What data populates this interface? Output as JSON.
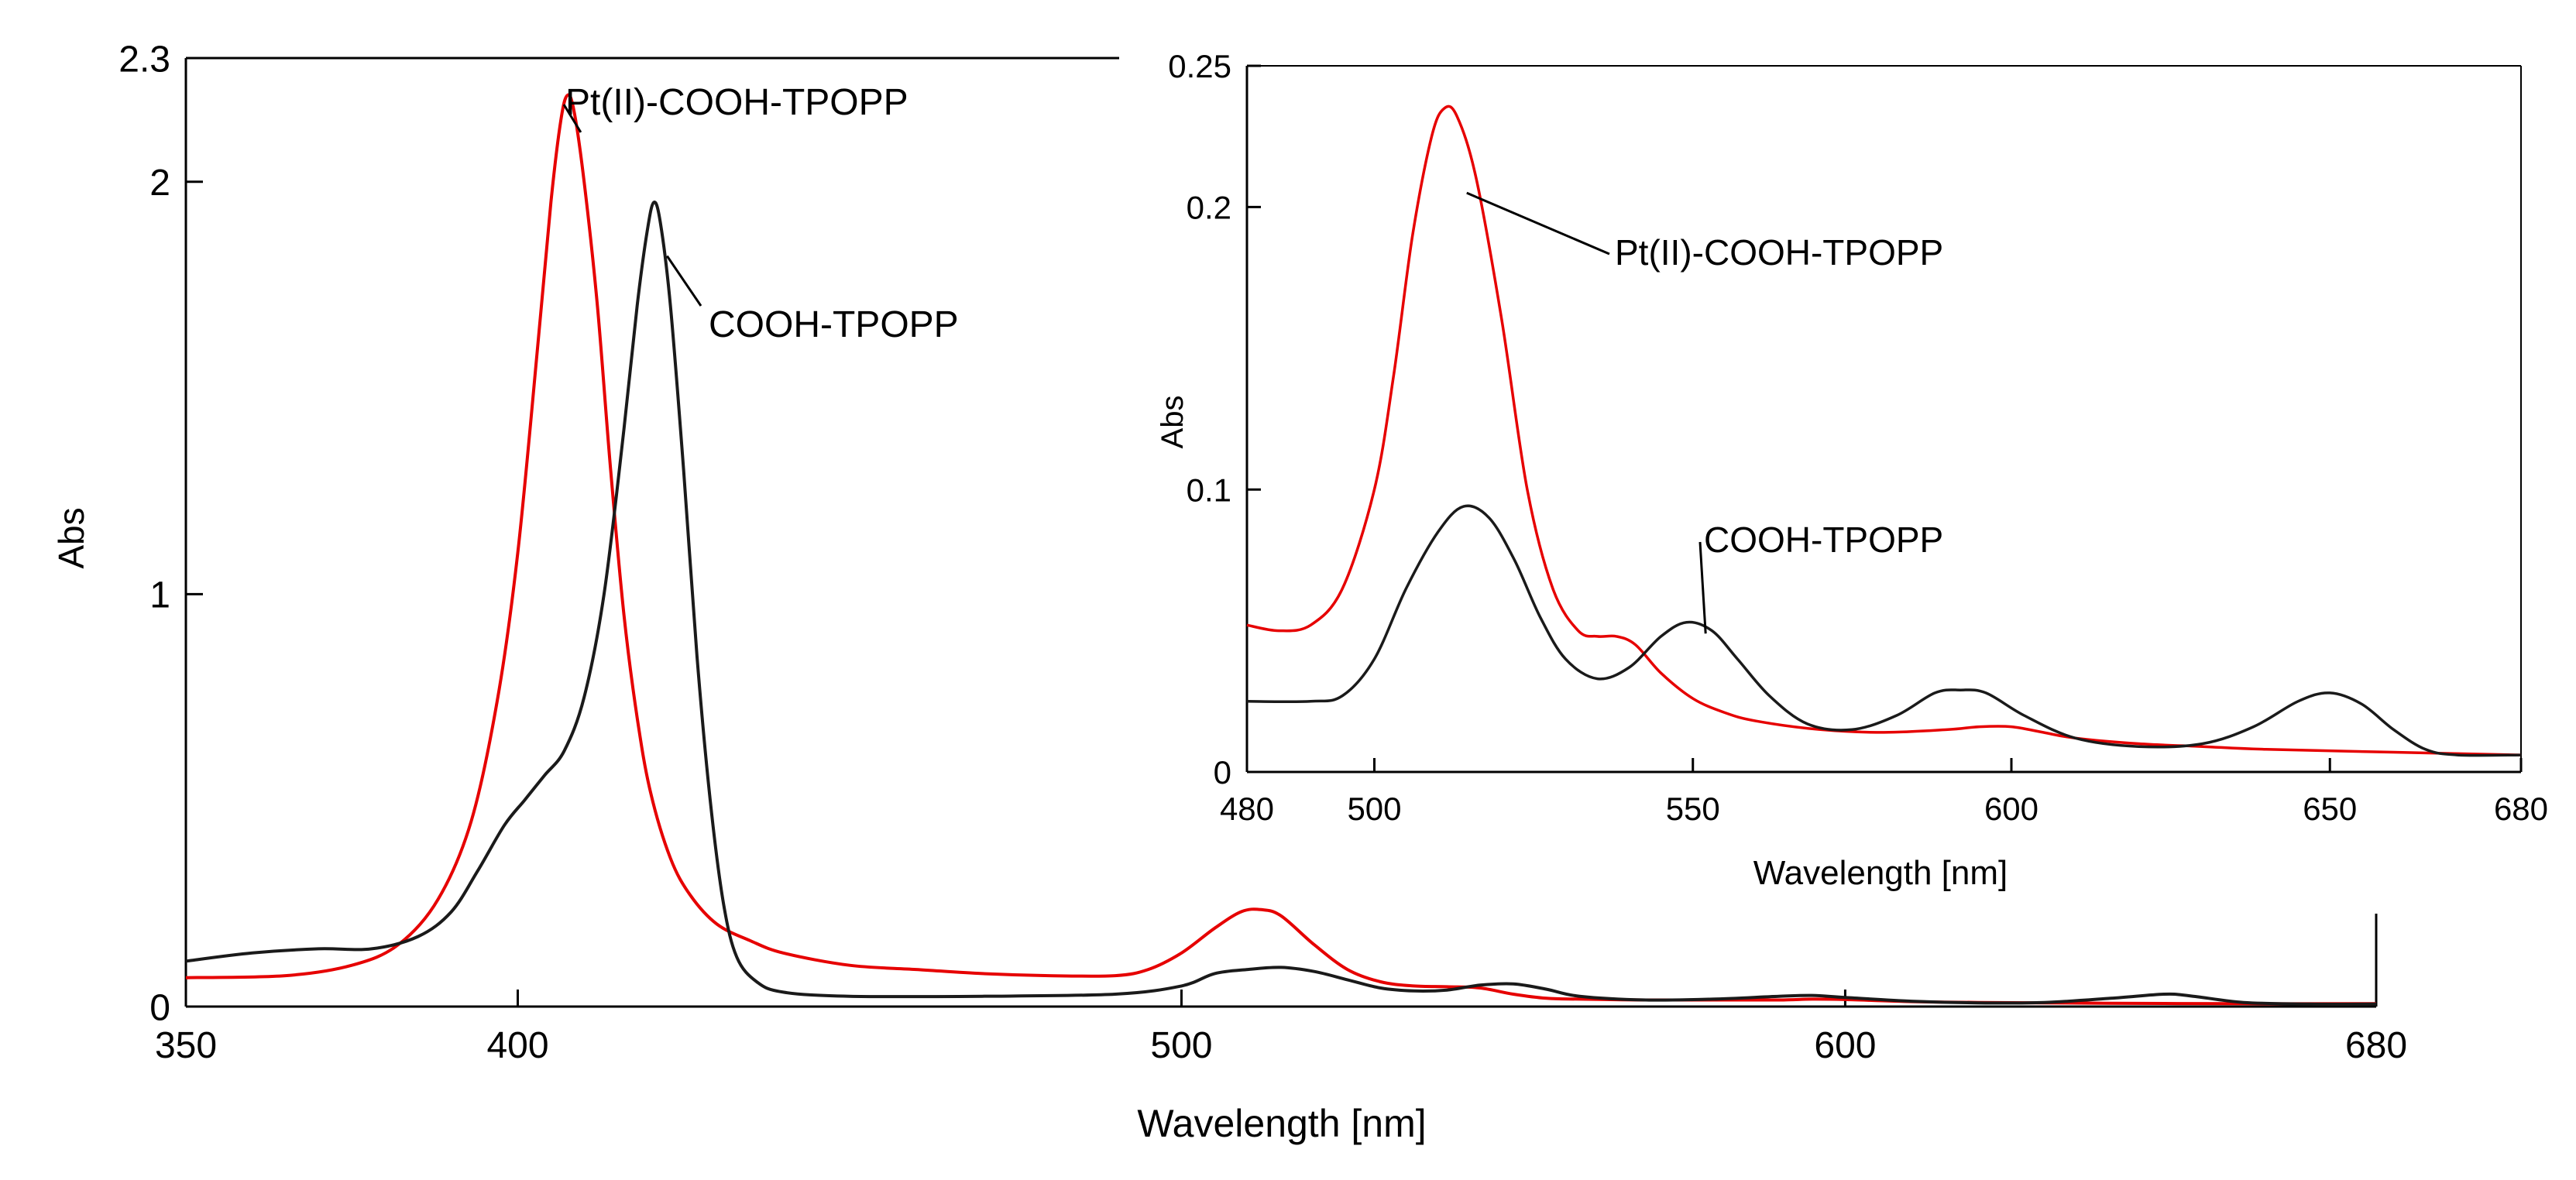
{
  "chart_data": [
    {
      "id": "main",
      "type": "line",
      "xlabel": "Wavelength [nm]",
      "ylabel": "Abs",
      "xlim": [
        350,
        680
      ],
      "ylim": [
        0,
        2.3
      ],
      "x_ticks": [
        350,
        400,
        500,
        600,
        680
      ],
      "y_ticks": [
        0,
        1,
        2,
        2.3
      ],
      "x_tick_labels": [
        "350",
        "400",
        "500",
        "600",
        "680"
      ],
      "y_tick_labels": [
        "0",
        "1",
        "2",
        "2.3"
      ],
      "series": [
        {
          "name": "Pt(II)-COOH-TPOPP",
          "color": "#e60000",
          "points": [
            [
              350,
              0.07
            ],
            [
              365,
              0.075
            ],
            [
              375,
              0.1
            ],
            [
              382,
              0.15
            ],
            [
              388,
              0.26
            ],
            [
              393,
              0.45
            ],
            [
              397,
              0.75
            ],
            [
              400,
              1.1
            ],
            [
              403,
              1.6
            ],
            [
              405,
              1.95
            ],
            [
              406.5,
              2.15
            ],
            [
              407.5,
              2.21
            ],
            [
              408.5,
              2.17
            ],
            [
              410,
              2.0
            ],
            [
              412,
              1.7
            ],
            [
              414,
              1.3
            ],
            [
              416,
              0.95
            ],
            [
              418,
              0.7
            ],
            [
              420,
              0.52
            ],
            [
              423,
              0.36
            ],
            [
              426,
              0.27
            ],
            [
              430,
              0.2
            ],
            [
              435,
              0.16
            ],
            [
              440,
              0.13
            ],
            [
              450,
              0.1
            ],
            [
              460,
              0.09
            ],
            [
              470,
              0.08
            ],
            [
              480,
              0.075
            ],
            [
              490,
              0.075
            ],
            [
              495,
              0.09
            ],
            [
              500,
              0.13
            ],
            [
              505,
              0.19
            ],
            [
              509,
              0.23
            ],
            [
              512,
              0.235
            ],
            [
              515,
              0.22
            ],
            [
              520,
              0.15
            ],
            [
              525,
              0.09
            ],
            [
              530,
              0.06
            ],
            [
              535,
              0.05
            ],
            [
              540,
              0.048
            ],
            [
              545,
              0.045
            ],
            [
              550,
              0.03
            ],
            [
              555,
              0.02
            ],
            [
              560,
              0.018
            ],
            [
              570,
              0.016
            ],
            [
              580,
              0.016
            ],
            [
              590,
              0.016
            ],
            [
              595,
              0.018
            ],
            [
              600,
              0.017
            ],
            [
              610,
              0.012
            ],
            [
              620,
              0.01
            ],
            [
              640,
              0.008
            ],
            [
              660,
              0.007
            ],
            [
              680,
              0.007
            ]
          ]
        },
        {
          "name": "COOH-TPOPP",
          "color": "#1a1a1a",
          "points": [
            [
              350,
              0.11
            ],
            [
              360,
              0.13
            ],
            [
              370,
              0.14
            ],
            [
              378,
              0.14
            ],
            [
              385,
              0.17
            ],
            [
              390,
              0.23
            ],
            [
              394,
              0.33
            ],
            [
              398,
              0.44
            ],
            [
              401,
              0.5
            ],
            [
              404,
              0.56
            ],
            [
              407,
              0.62
            ],
            [
              410,
              0.75
            ],
            [
              413,
              1.0
            ],
            [
              416,
              1.4
            ],
            [
              418,
              1.7
            ],
            [
              419.5,
              1.88
            ],
            [
              420.5,
              1.95
            ],
            [
              421.5,
              1.9
            ],
            [
              423,
              1.7
            ],
            [
              425,
              1.3
            ],
            [
              427,
              0.85
            ],
            [
              429,
              0.5
            ],
            [
              431,
              0.25
            ],
            [
              433,
              0.12
            ],
            [
              436,
              0.06
            ],
            [
              440,
              0.035
            ],
            [
              450,
              0.025
            ],
            [
              470,
              0.025
            ],
            [
              490,
              0.03
            ],
            [
              500,
              0.05
            ],
            [
              505,
              0.08
            ],
            [
              510,
              0.09
            ],
            [
              515,
              0.095
            ],
            [
              520,
              0.085
            ],
            [
              525,
              0.065
            ],
            [
              530,
              0.045
            ],
            [
              535,
              0.038
            ],
            [
              540,
              0.04
            ],
            [
              545,
              0.052
            ],
            [
              550,
              0.055
            ],
            [
              555,
              0.042
            ],
            [
              560,
              0.025
            ],
            [
              570,
              0.016
            ],
            [
              580,
              0.018
            ],
            [
              590,
              0.025
            ],
            [
              595,
              0.027
            ],
            [
              600,
              0.022
            ],
            [
              610,
              0.013
            ],
            [
              620,
              0.009
            ],
            [
              630,
              0.01
            ],
            [
              640,
              0.02
            ],
            [
              648,
              0.03
            ],
            [
              652,
              0.026
            ],
            [
              660,
              0.01
            ],
            [
              670,
              0.006
            ],
            [
              680,
              0.006
            ]
          ]
        }
      ],
      "annotations": [
        {
          "text": "Pt(II)-COOH-TPOPP",
          "series": 0
        },
        {
          "text": "COOH-TPOPP",
          "series": 1
        }
      ]
    },
    {
      "id": "inset",
      "type": "line",
      "xlabel": "Wavelength [nm]",
      "ylabel": "Abs",
      "xlim": [
        480,
        680
      ],
      "ylim": [
        0,
        0.25
      ],
      "x_ticks": [
        480,
        500,
        550,
        600,
        650,
        680
      ],
      "y_ticks": [
        0,
        0.1,
        0.2,
        0.25
      ],
      "x_tick_labels": [
        "480",
        "500",
        "550",
        "600",
        "650",
        "680"
      ],
      "y_tick_labels": [
        "0",
        "0.1",
        "0.2",
        "0.25"
      ],
      "series": [
        {
          "name": "Pt(II)-COOH-TPOPP",
          "color": "#e60000",
          "points": [
            [
              480,
              0.052
            ],
            [
              485,
              0.05
            ],
            [
              490,
              0.052
            ],
            [
              495,
              0.065
            ],
            [
              500,
              0.1
            ],
            [
              503,
              0.14
            ],
            [
              506,
              0.19
            ],
            [
              509,
              0.225
            ],
            [
              511,
              0.235
            ],
            [
              513,
              0.232
            ],
            [
              516,
              0.21
            ],
            [
              520,
              0.16
            ],
            [
              524,
              0.1
            ],
            [
              528,
              0.065
            ],
            [
              532,
              0.05
            ],
            [
              535,
              0.048
            ],
            [
              538,
              0.048
            ],
            [
              541,
              0.045
            ],
            [
              545,
              0.035
            ],
            [
              550,
              0.026
            ],
            [
              555,
              0.021
            ],
            [
              560,
              0.018
            ],
            [
              570,
              0.015
            ],
            [
              580,
              0.014
            ],
            [
              590,
              0.015
            ],
            [
              595,
              0.016
            ],
            [
              600,
              0.016
            ],
            [
              605,
              0.014
            ],
            [
              610,
              0.012
            ],
            [
              620,
              0.01
            ],
            [
              630,
              0.009
            ],
            [
              640,
              0.008
            ],
            [
              660,
              0.007
            ],
            [
              680,
              0.006
            ]
          ]
        },
        {
          "name": "COOH-TPOPP",
          "color": "#1a1a1a",
          "points": [
            [
              480,
              0.025
            ],
            [
              490,
              0.025
            ],
            [
              495,
              0.027
            ],
            [
              500,
              0.04
            ],
            [
              505,
              0.065
            ],
            [
              510,
              0.085
            ],
            [
              514,
              0.094
            ],
            [
              518,
              0.09
            ],
            [
              522,
              0.075
            ],
            [
              526,
              0.055
            ],
            [
              530,
              0.04
            ],
            [
              535,
              0.033
            ],
            [
              540,
              0.037
            ],
            [
              545,
              0.048
            ],
            [
              549,
              0.053
            ],
            [
              553,
              0.05
            ],
            [
              557,
              0.04
            ],
            [
              562,
              0.027
            ],
            [
              568,
              0.017
            ],
            [
              575,
              0.015
            ],
            [
              582,
              0.02
            ],
            [
              588,
              0.028
            ],
            [
              592,
              0.029
            ],
            [
              596,
              0.028
            ],
            [
              602,
              0.02
            ],
            [
              610,
              0.012
            ],
            [
              620,
              0.009
            ],
            [
              630,
              0.01
            ],
            [
              638,
              0.016
            ],
            [
              645,
              0.025
            ],
            [
              650,
              0.028
            ],
            [
              655,
              0.024
            ],
            [
              660,
              0.015
            ],
            [
              665,
              0.008
            ],
            [
              670,
              0.006
            ],
            [
              680,
              0.006
            ]
          ]
        }
      ],
      "annotations": [
        {
          "text": "Pt(II)-COOH-TPOPP",
          "series": 0
        },
        {
          "text": "COOH-TPOPP",
          "series": 1
        }
      ]
    }
  ]
}
